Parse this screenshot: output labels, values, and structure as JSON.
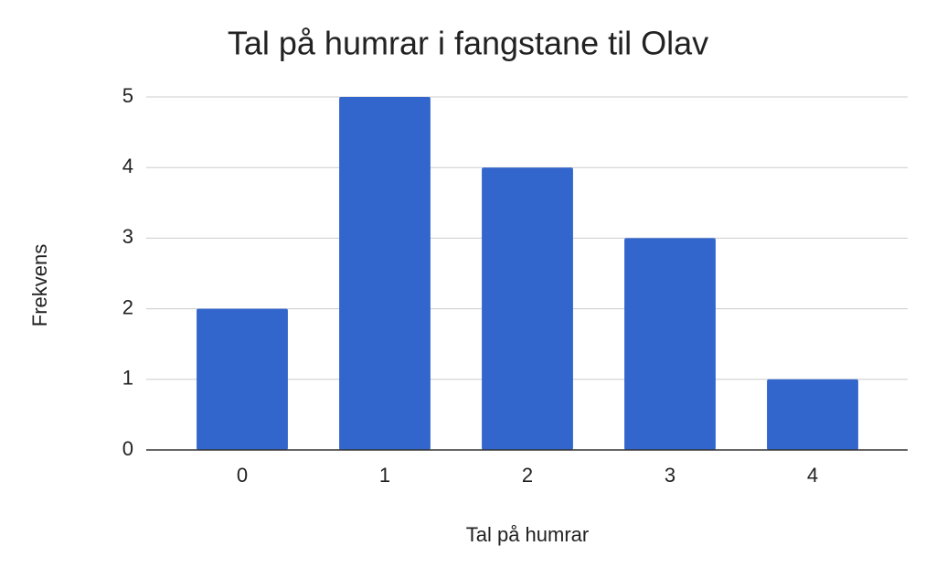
{
  "chart_data": {
    "type": "bar",
    "title": "Tal på humrar i fangstane til Olav",
    "x_label": "Tal på humrar",
    "y_label": "Frekvens",
    "categories": [
      "0",
      "1",
      "2",
      "3",
      "4"
    ],
    "values": [
      2,
      5,
      4,
      3,
      1
    ],
    "color": "#3366cc",
    "ylim": [
      0,
      5
    ],
    "yticks": [
      0,
      1,
      2,
      3,
      4,
      5
    ],
    "grid": true
  }
}
